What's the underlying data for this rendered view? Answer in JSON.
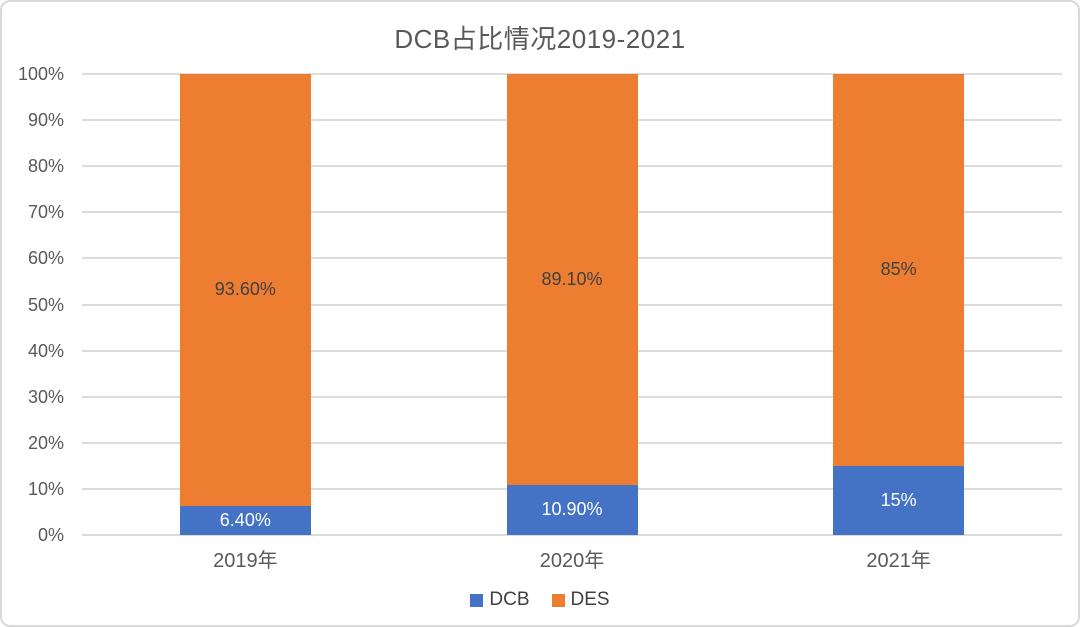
{
  "chart_data": {
    "type": "bar",
    "stacked": true,
    "percent_stacked": true,
    "title": "DCB占比情况2019-2021",
    "xlabel": "",
    "ylabel": "",
    "ylim": [
      0,
      100
    ],
    "y_ticks": [
      "0%",
      "10%",
      "20%",
      "30%",
      "40%",
      "50%",
      "60%",
      "70%",
      "80%",
      "90%",
      "100%"
    ],
    "grid": true,
    "legend_position": "bottom",
    "categories": [
      "2019年",
      "2020年",
      "2021年"
    ],
    "series": [
      {
        "name": "DCB",
        "color": "#4472C4",
        "label_color": "#FFFFFF",
        "values": [
          6.4,
          10.9,
          15
        ],
        "labels": [
          "6.40%",
          "10.90%",
          "15%"
        ]
      },
      {
        "name": "DES",
        "color": "#ED7D31",
        "label_color": "#404040",
        "values": [
          93.6,
          89.1,
          85
        ],
        "labels": [
          "93.60%",
          "89.10%",
          "85%"
        ]
      }
    ]
  },
  "style_colors": {
    "grid": "#DCDCDC",
    "axis_text": "#595959",
    "border": "#D9D9D9",
    "background": "#FFFFFF"
  }
}
